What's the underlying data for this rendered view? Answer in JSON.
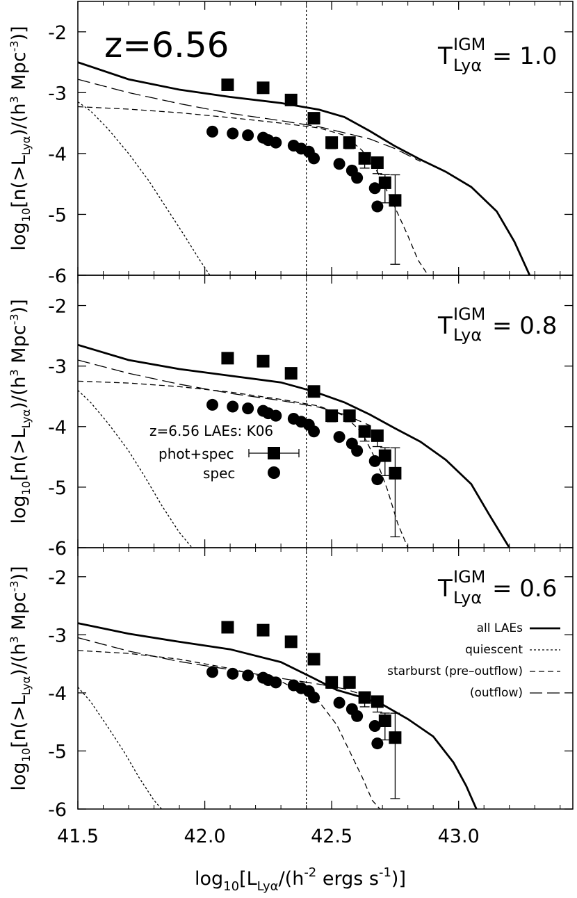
{
  "chart_data": [
    {
      "type": "line",
      "panel": "top",
      "title": "z=6.56",
      "transmission": {
        "symbol": "T",
        "sup": "IGM",
        "sub": "Lyα",
        "value": "= 1.0"
      },
      "ylim": [
        -6,
        -1.5
      ],
      "xlim": [
        41.5,
        43.45
      ],
      "series": [
        {
          "name": "all LAEs",
          "style": "solid",
          "x": [
            41.5,
            41.7,
            41.9,
            42.1,
            42.3,
            42.45,
            42.55,
            42.65,
            42.75,
            42.85,
            42.95,
            43.05,
            43.15,
            43.22,
            43.28
          ],
          "y": [
            -2.5,
            -2.78,
            -2.95,
            -3.07,
            -3.17,
            -3.28,
            -3.4,
            -3.63,
            -3.88,
            -4.1,
            -4.3,
            -4.55,
            -4.95,
            -5.45,
            -6.0
          ]
        },
        {
          "name": "quiescent",
          "style": "dotted",
          "x": [
            41.5,
            41.55,
            41.62,
            41.7,
            41.78,
            41.85,
            41.92,
            41.98,
            42.02
          ],
          "y": [
            -3.15,
            -3.3,
            -3.6,
            -4.0,
            -4.45,
            -4.9,
            -5.35,
            -5.75,
            -6.0
          ]
        },
        {
          "name": "starburst (pre-outflow)",
          "style": "dashed",
          "x": [
            41.5,
            41.7,
            41.9,
            42.1,
            42.3,
            42.45,
            42.55,
            42.62,
            42.68,
            42.74,
            42.8,
            42.84,
            42.88
          ],
          "y": [
            -3.23,
            -3.27,
            -3.33,
            -3.41,
            -3.5,
            -3.58,
            -3.7,
            -3.95,
            -4.3,
            -4.8,
            -5.35,
            -5.75,
            -6.0
          ]
        },
        {
          "name": "(outflow)",
          "style": "longdash",
          "x": [
            41.5,
            41.7,
            41.9,
            42.1,
            42.3,
            42.45,
            42.55,
            42.65,
            42.75,
            42.85
          ],
          "y": [
            -2.78,
            -3.0,
            -3.18,
            -3.34,
            -3.46,
            -3.56,
            -3.66,
            -3.76,
            -3.92,
            -4.13
          ]
        }
      ],
      "observations": [
        {
          "name": "phot+spec",
          "marker": "square",
          "x": [
            42.09,
            42.23,
            42.34,
            42.43,
            42.5,
            42.57,
            42.63,
            42.68,
            42.71,
            42.75
          ],
          "y": [
            -2.87,
            -2.92,
            -3.12,
            -3.42,
            -3.82,
            -3.82,
            -4.08,
            -4.15,
            -4.48,
            -4.77
          ],
          "err": [
            0,
            0,
            0,
            0,
            0.1,
            0.1,
            0.16,
            0.18,
            0.33,
            1.05
          ]
        },
        {
          "name": "spec",
          "marker": "circle",
          "x": [
            42.03,
            42.11,
            42.17,
            42.23,
            42.25,
            42.28,
            42.35,
            42.38,
            42.41,
            42.43,
            42.53,
            42.58,
            42.6,
            42.67,
            42.68
          ],
          "y": [
            -3.64,
            -3.67,
            -3.7,
            -3.74,
            -3.78,
            -3.82,
            -3.87,
            -3.92,
            -3.97,
            -4.08,
            -4.17,
            -4.28,
            -4.4,
            -4.57,
            -4.87
          ]
        }
      ]
    },
    {
      "type": "line",
      "panel": "middle",
      "transmission": {
        "symbol": "T",
        "sup": "IGM",
        "sub": "Lyα",
        "value": "= 0.8"
      },
      "ylim": [
        -6,
        -1.5
      ],
      "xlim": [
        41.5,
        43.45
      ],
      "series": [
        {
          "name": "all LAEs",
          "style": "solid",
          "x": [
            41.5,
            41.7,
            41.9,
            42.1,
            42.3,
            42.43,
            42.55,
            42.65,
            42.75,
            42.85,
            42.95,
            43.05,
            43.12,
            43.2
          ],
          "y": [
            -2.65,
            -2.9,
            -3.05,
            -3.16,
            -3.27,
            -3.42,
            -3.6,
            -3.8,
            -4.03,
            -4.25,
            -4.55,
            -4.95,
            -5.45,
            -6.0
          ]
        },
        {
          "name": "quiescent",
          "style": "dotted",
          "x": [
            41.5,
            41.55,
            41.62,
            41.7,
            41.76,
            41.83,
            41.9,
            41.95
          ],
          "y": [
            -3.4,
            -3.6,
            -3.95,
            -4.4,
            -4.8,
            -5.3,
            -5.75,
            -6.0
          ]
        },
        {
          "name": "starburst (pre-outflow)",
          "style": "dashed",
          "x": [
            41.5,
            41.7,
            41.9,
            42.1,
            42.3,
            42.45,
            42.55,
            42.62,
            42.68,
            42.72,
            42.76,
            42.8
          ],
          "y": [
            -3.25,
            -3.28,
            -3.34,
            -3.43,
            -3.55,
            -3.66,
            -3.82,
            -4.1,
            -4.6,
            -5.05,
            -5.6,
            -6.0
          ]
        },
        {
          "name": "(outflow)",
          "style": "longdash",
          "x": [
            41.5,
            41.7,
            41.9,
            42.1,
            42.3,
            42.45,
            42.55,
            42.65
          ],
          "y": [
            -2.9,
            -3.12,
            -3.3,
            -3.45,
            -3.57,
            -3.68,
            -3.8,
            -3.98
          ]
        }
      ],
      "observations": [
        {
          "name": "phot+spec",
          "marker": "square",
          "x": [
            42.09,
            42.23,
            42.34,
            42.43,
            42.5,
            42.57,
            42.63,
            42.68,
            42.71,
            42.75
          ],
          "y": [
            -2.87,
            -2.92,
            -3.12,
            -3.42,
            -3.82,
            -3.82,
            -4.08,
            -4.15,
            -4.48,
            -4.77
          ],
          "err": [
            0,
            0,
            0,
            0,
            0.1,
            0.1,
            0.16,
            0.18,
            0.33,
            1.05
          ]
        },
        {
          "name": "spec",
          "marker": "circle",
          "x": [
            42.03,
            42.11,
            42.17,
            42.23,
            42.25,
            42.28,
            42.35,
            42.38,
            42.41,
            42.43,
            42.53,
            42.58,
            42.6,
            42.67,
            42.68
          ],
          "y": [
            -3.64,
            -3.67,
            -3.7,
            -3.74,
            -3.78,
            -3.82,
            -3.87,
            -3.92,
            -3.97,
            -4.08,
            -4.17,
            -4.28,
            -4.4,
            -4.57,
            -4.87
          ]
        }
      ],
      "legend": {
        "title": "z=6.56 LAEs: K06",
        "items": [
          "phot+spec",
          "spec"
        ]
      }
    },
    {
      "type": "line",
      "panel": "bottom",
      "transmission": {
        "symbol": "T",
        "sup": "IGM",
        "sub": "Lyα",
        "value": "= 0.6"
      },
      "ylim": [
        -6,
        -1.5
      ],
      "xlim": [
        41.5,
        43.45
      ],
      "series": [
        {
          "name": "all LAEs",
          "style": "solid",
          "x": [
            41.5,
            41.7,
            41.9,
            42.1,
            42.3,
            42.43,
            42.52,
            42.6,
            42.7,
            42.8,
            42.9,
            42.98,
            43.03,
            43.07
          ],
          "y": [
            -2.8,
            -2.98,
            -3.12,
            -3.25,
            -3.47,
            -3.75,
            -3.95,
            -4.05,
            -4.2,
            -4.45,
            -4.75,
            -5.2,
            -5.6,
            -6.0
          ]
        },
        {
          "name": "quiescent",
          "style": "dotted",
          "x": [
            41.5,
            41.55,
            41.62,
            41.68,
            41.74,
            41.8,
            41.83
          ],
          "y": [
            -3.9,
            -4.15,
            -4.6,
            -5.0,
            -5.45,
            -5.85,
            -6.0
          ]
        },
        {
          "name": "starburst (pre-outflow)",
          "style": "dashed",
          "x": [
            41.5,
            41.7,
            41.9,
            42.1,
            42.3,
            42.45,
            42.52,
            42.57,
            42.62,
            42.66,
            42.69
          ],
          "y": [
            -3.27,
            -3.32,
            -3.42,
            -3.58,
            -3.8,
            -4.15,
            -4.55,
            -5.0,
            -5.45,
            -5.85,
            -6.0
          ]
        },
        {
          "name": "(outflow)",
          "style": "longdash",
          "x": [
            41.5,
            41.7,
            41.9,
            42.1,
            42.3,
            42.45,
            42.55,
            42.6
          ],
          "y": [
            -3.05,
            -3.28,
            -3.46,
            -3.6,
            -3.75,
            -3.85,
            -3.93,
            -4.0
          ]
        }
      ],
      "observations": [
        {
          "name": "phot+spec",
          "marker": "square",
          "x": [
            42.09,
            42.23,
            42.34,
            42.43,
            42.5,
            42.57,
            42.63,
            42.68,
            42.71,
            42.75
          ],
          "y": [
            -2.87,
            -2.92,
            -3.12,
            -3.42,
            -3.82,
            -3.82,
            -4.08,
            -4.15,
            -4.48,
            -4.77
          ],
          "err": [
            0,
            0,
            0,
            0,
            0.1,
            0.1,
            0.16,
            0.18,
            0.33,
            1.05
          ]
        },
        {
          "name": "spec",
          "marker": "circle",
          "x": [
            42.03,
            42.11,
            42.17,
            42.23,
            42.25,
            42.28,
            42.35,
            42.38,
            42.41,
            42.43,
            42.53,
            42.58,
            42.6,
            42.67,
            42.68
          ],
          "y": [
            -3.64,
            -3.67,
            -3.7,
            -3.74,
            -3.78,
            -3.82,
            -3.87,
            -3.92,
            -3.97,
            -4.08,
            -4.17,
            -4.28,
            -4.4,
            -4.57,
            -4.87
          ]
        }
      ],
      "legend": {
        "items": [
          "all LAEs",
          "quiescent",
          "starburst (pre–outflow)",
          "(outflow)"
        ]
      }
    }
  ],
  "axes": {
    "x_ticks": [
      "41.5",
      "42.0",
      "42.5",
      "43.0"
    ],
    "x_tick_values": [
      41.5,
      42.0,
      42.5,
      43.0
    ],
    "y_ticks_top": [
      "-2",
      "-3",
      "-4",
      "-5",
      "-6"
    ],
    "y_ticks": [
      "-2",
      "-3",
      "-4",
      "-5",
      "-6"
    ],
    "y_tick_values": [
      -2,
      -3,
      -4,
      -5,
      -6
    ],
    "vline_x": 42.4,
    "x_title": {
      "main": "log",
      "sub": "10",
      "rest": "[L",
      "rest_sub": "Lyα",
      "rest2": "/(h",
      "sup": "-2",
      "rest3": " ergs s",
      "sup2": "-1",
      "rest4": ")]"
    },
    "y_title": {
      "main": "log",
      "sub": "10",
      "rest": "[n(>L",
      "rest_sub": "Lyα",
      "rest2": ")/(h",
      "sup": "3",
      "rest3": " Mpc",
      "sup2": "-3",
      "rest4": ")]"
    }
  }
}
